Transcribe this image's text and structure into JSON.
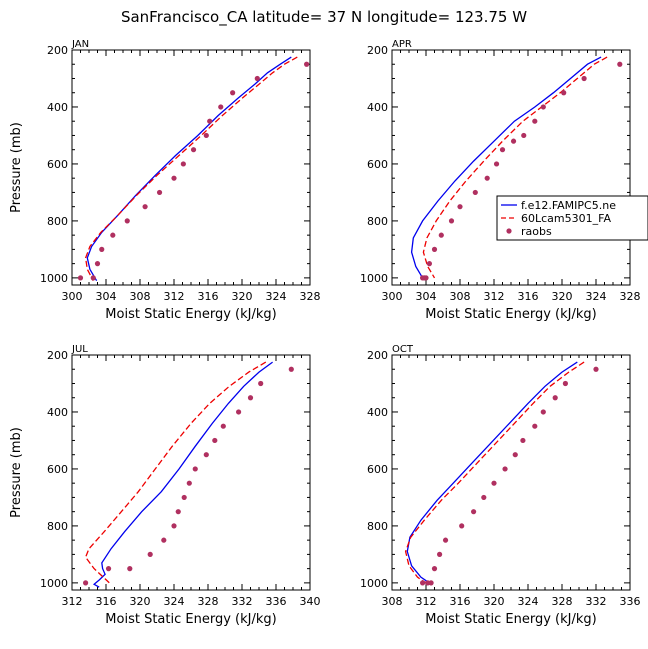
{
  "figure": {
    "title": "SanFrancisco_CA  latitude= 37 N longitude= 123.75 W",
    "colors": {
      "model1": "#0000ee",
      "model2": "#ee0000",
      "obs": "#b03060",
      "axis": "#000000"
    }
  },
  "legend": {
    "entries": [
      "f.e12.FAMIPC5.ne",
      "60Lcam5301_FA",
      "raobs"
    ]
  },
  "chart_data": [
    {
      "type": "line",
      "panel_label": "JAN",
      "xlabel": "Moist Static Energy (kJ/kg)",
      "ylabel": "Pressure (mb)",
      "xlim": [
        300,
        328
      ],
      "ylim": [
        1025,
        200
      ],
      "xticks": [
        300,
        304,
        308,
        312,
        316,
        320,
        324,
        328
      ],
      "yticks": [
        200,
        400,
        600,
        800,
        1000
      ],
      "series": [
        {
          "name": "f.e12.FAMIPC5.ne",
          "style": "solid",
          "color": "#0000ee",
          "x": [
            325.8,
            324.5,
            323.0,
            321.5,
            319.5,
            317.2,
            314.8,
            312.2,
            309.8,
            307.5,
            305.4,
            303.5,
            302.3,
            301.8,
            302.1,
            302.9
          ],
          "y": [
            225,
            250,
            280,
            320,
            370,
            430,
            500,
            570,
            640,
            710,
            780,
            840,
            890,
            930,
            970,
            1010
          ]
        },
        {
          "name": "60Lcam5301_FA",
          "style": "dashed",
          "color": "#ee0000",
          "x": [
            326.5,
            325.0,
            323.6,
            322.0,
            320.0,
            317.7,
            315.2,
            312.6,
            310.0,
            307.6,
            305.4,
            303.4,
            302.1,
            301.6,
            301.8,
            302.5
          ],
          "y": [
            225,
            250,
            280,
            320,
            370,
            430,
            500,
            570,
            640,
            710,
            780,
            840,
            890,
            930,
            970,
            1010
          ]
        },
        {
          "name": "raobs",
          "style": "markers",
          "color": "#b03060",
          "x": [
            327.6,
            321.8,
            318.9,
            317.5,
            316.2,
            315.8,
            314.3,
            313.1,
            312.0,
            310.3,
            308.6,
            306.5,
            304.8,
            303.5,
            303.0,
            302.5,
            301.0
          ],
          "y": [
            250,
            300,
            350,
            400,
            450,
            500,
            550,
            600,
            650,
            700,
            750,
            800,
            850,
            900,
            950,
            1000,
            1000
          ]
        }
      ]
    },
    {
      "type": "line",
      "panel_label": "APR",
      "xlabel": "Moist Static Energy (kJ/kg)",
      "ylabel": "",
      "xlim": [
        300,
        328
      ],
      "ylim": [
        1025,
        200
      ],
      "xticks": [
        300,
        304,
        308,
        312,
        316,
        320,
        324,
        328
      ],
      "yticks": [
        200,
        400,
        600,
        800,
        1000
      ],
      "series": [
        {
          "name": "f.e12.FAMIPC5.ne",
          "style": "solid",
          "color": "#0000ee",
          "x": [
            324.6,
            323.0,
            321.0,
            319.0,
            316.8,
            314.4,
            312.0,
            309.6,
            307.4,
            305.4,
            303.6,
            302.5,
            302.3,
            302.8,
            303.6
          ],
          "y": [
            225,
            250,
            300,
            350,
            400,
            450,
            520,
            590,
            660,
            730,
            800,
            860,
            910,
            960,
            1000
          ]
        },
        {
          "name": "60Lcam5301_FA",
          "style": "dashed",
          "color": "#ee0000",
          "x": [
            325.3,
            323.8,
            321.8,
            319.8,
            317.6,
            315.4,
            313.0,
            310.8,
            308.7,
            306.8,
            305.2,
            304.1,
            303.7,
            304.2,
            305.0
          ],
          "y": [
            225,
            250,
            300,
            350,
            400,
            450,
            520,
            590,
            660,
            730,
            800,
            860,
            910,
            960,
            1000
          ]
        },
        {
          "name": "raobs",
          "style": "markers",
          "color": "#b03060",
          "x": [
            326.8,
            322.6,
            320.2,
            317.8,
            316.8,
            315.5,
            314.3,
            313.0,
            312.3,
            311.2,
            309.8,
            308.0,
            307.0,
            305.8,
            305.0,
            304.4,
            304.0,
            303.8,
            303.6
          ],
          "y": [
            250,
            300,
            350,
            400,
            450,
            500,
            520,
            550,
            600,
            650,
            700,
            750,
            800,
            850,
            900,
            950,
            1000,
            1000,
            1000
          ]
        }
      ]
    },
    {
      "type": "line",
      "panel_label": "JUL",
      "xlabel": "Moist Static Energy (kJ/kg)",
      "ylabel": "Pressure (mb)",
      "xlim": [
        312,
        340
      ],
      "ylim": [
        1025,
        200
      ],
      "xticks": [
        312,
        316,
        320,
        324,
        328,
        332,
        336,
        340
      ],
      "yticks": [
        200,
        400,
        600,
        800,
        1000
      ],
      "series": [
        {
          "name": "f.e12.FAMIPC5.ne",
          "style": "solid",
          "color": "#0000ee",
          "x": [
            335.6,
            334.0,
            332.2,
            330.4,
            328.5,
            326.5,
            324.6,
            322.5,
            320.2,
            318.2,
            316.6,
            315.5,
            315.6,
            315.9,
            315.2,
            314.6,
            315.2
          ],
          "y": [
            225,
            260,
            310,
            370,
            440,
            520,
            600,
            680,
            750,
            820,
            880,
            930,
            950,
            970,
            990,
            1005,
            1015
          ]
        },
        {
          "name": "60Lcam5301_FA",
          "style": "dashed",
          "color": "#ee0000",
          "x": [
            334.8,
            332.8,
            330.5,
            328.2,
            326.0,
            323.8,
            321.8,
            319.8,
            317.8,
            315.8,
            314.0,
            313.6,
            314.6,
            316.4
          ],
          "y": [
            225,
            260,
            310,
            370,
            440,
            520,
            600,
            680,
            750,
            820,
            880,
            910,
            950,
            1000
          ]
        },
        {
          "name": "raobs",
          "style": "markers",
          "color": "#b03060",
          "x": [
            337.8,
            334.2,
            333.0,
            331.6,
            329.8,
            328.8,
            327.8,
            326.5,
            325.8,
            325.2,
            324.5,
            324.0,
            322.8,
            321.2,
            318.8,
            316.3,
            313.6
          ],
          "y": [
            250,
            300,
            350,
            400,
            450,
            500,
            550,
            600,
            650,
            700,
            750,
            800,
            850,
            900,
            950,
            950,
            1000
          ]
        }
      ]
    },
    {
      "type": "line",
      "panel_label": "OCT",
      "xlabel": "Moist Static Energy (kJ/kg)",
      "ylabel": "",
      "xlim": [
        308,
        336
      ],
      "ylim": [
        1025,
        200
      ],
      "xticks": [
        308,
        312,
        316,
        320,
        324,
        328,
        332,
        336
      ],
      "yticks": [
        200,
        400,
        600,
        800,
        1000
      ],
      "series": [
        {
          "name": "f.e12.FAMIPC5.ne",
          "style": "solid",
          "color": "#0000ee",
          "x": [
            329.8,
            328.0,
            326.0,
            324.0,
            321.8,
            319.6,
            317.4,
            315.2,
            313.3,
            311.4,
            310.1,
            309.8,
            310.3,
            311.4,
            312.4
          ],
          "y": [
            225,
            260,
            310,
            370,
            440,
            510,
            580,
            650,
            710,
            780,
            840,
            890,
            940,
            980,
            1000
          ]
        },
        {
          "name": "60Lcam5301_FA",
          "style": "dashed",
          "color": "#ee0000",
          "x": [
            330.6,
            328.8,
            326.6,
            324.6,
            322.4,
            320.2,
            318.0,
            315.8,
            313.8,
            311.8,
            310.2,
            309.6,
            310.0,
            311.0,
            312.0
          ],
          "y": [
            225,
            260,
            310,
            370,
            440,
            510,
            580,
            650,
            710,
            780,
            840,
            890,
            940,
            980,
            1000
          ]
        },
        {
          "name": "raobs",
          "style": "markers",
          "color": "#b03060",
          "x": [
            332.0,
            328.4,
            327.2,
            325.8,
            324.8,
            323.4,
            322.5,
            321.3,
            320.0,
            318.8,
            317.6,
            316.2,
            314.3,
            313.6,
            313.0,
            312.6,
            312.2,
            311.6
          ],
          "y": [
            250,
            300,
            350,
            400,
            450,
            500,
            550,
            600,
            650,
            700,
            750,
            800,
            850,
            900,
            950,
            1000,
            1000,
            1000
          ]
        }
      ]
    }
  ]
}
